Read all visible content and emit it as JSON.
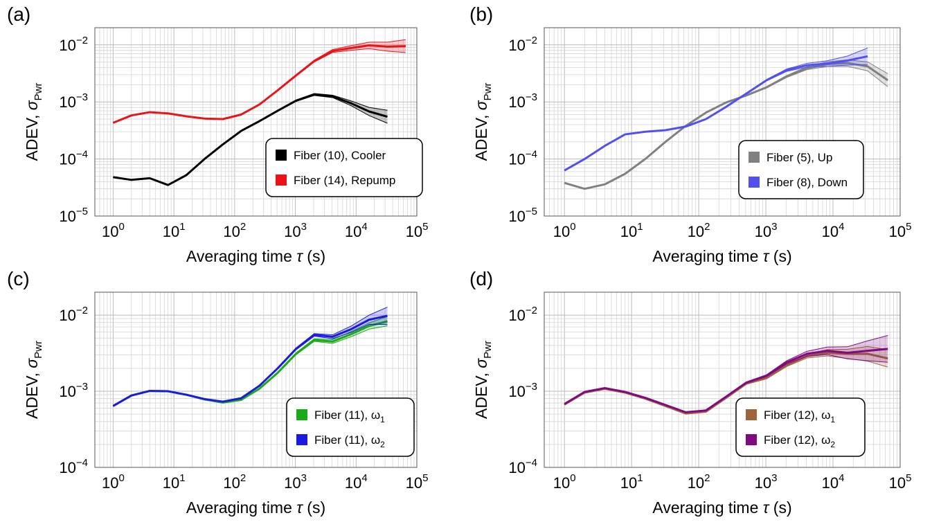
{
  "figure": {
    "xlabel_prefix": "Averaging time ",
    "xlabel_symbol": "τ",
    "xlabel_suffix": " (s)",
    "ylabel_prefix": "ADEV, ",
    "ylabel_symbol": "σ",
    "ylabel_sub": "Pwr"
  },
  "chart_data": [
    {
      "panel": "(a)",
      "type": "line",
      "xscale": "log",
      "yscale": "log",
      "xlim": [
        0.5,
        100000
      ],
      "ylim": [
        1e-05,
        0.02
      ],
      "grid": true,
      "legend_position": "lower-right",
      "x_ticks": [
        {
          "base": "10",
          "exp": "0"
        },
        {
          "base": "10",
          "exp": "1"
        },
        {
          "base": "10",
          "exp": "2"
        },
        {
          "base": "10",
          "exp": "3"
        },
        {
          "base": "10",
          "exp": "4"
        },
        {
          "base": "10",
          "exp": "5"
        }
      ],
      "y_ticks": [
        {
          "base": "10",
          "exp": "−5"
        },
        {
          "base": "10",
          "exp": "−4"
        },
        {
          "base": "10",
          "exp": "−3"
        },
        {
          "base": "10",
          "exp": "−2"
        }
      ],
      "series": [
        {
          "name": "Fiber (10), Cooler",
          "label": "Fiber (10), Cooler",
          "label_sub": "",
          "color": "#000000",
          "x": [
            1,
            2,
            4,
            8,
            16,
            32,
            64,
            128,
            256,
            512,
            1024,
            2048,
            4096,
            8192,
            16384,
            32768
          ],
          "y": [
            4.8e-05,
            4.3e-05,
            4.6e-05,
            3.5e-05,
            5.2e-05,
            0.0001,
            0.00018,
            0.00031,
            0.00046,
            0.0007,
            0.00105,
            0.00135,
            0.00125,
            0.00095,
            0.00068,
            0.00055
          ],
          "band_rel": [
            0.01,
            0.01,
            0.01,
            0.01,
            0.01,
            0.01,
            0.01,
            0.01,
            0.01,
            0.02,
            0.03,
            0.04,
            0.05,
            0.1,
            0.18,
            0.3
          ]
        },
        {
          "name": "Fiber (14), Repump",
          "label": "Fiber (14), Repump",
          "label_sub": "",
          "color": "#e8141a",
          "x": [
            1,
            2,
            4,
            8,
            16,
            32,
            64,
            128,
            256,
            512,
            1024,
            2048,
            4096,
            8192,
            16384,
            32768,
            65536
          ],
          "y": [
            0.00043,
            0.00058,
            0.00066,
            0.00063,
            0.00056,
            0.00051,
            0.0005,
            0.0006,
            0.0009,
            0.0016,
            0.0029,
            0.0052,
            0.0078,
            0.0088,
            0.0098,
            0.0093,
            0.0095
          ],
          "band_rel": [
            0.01,
            0.01,
            0.01,
            0.01,
            0.01,
            0.01,
            0.01,
            0.01,
            0.01,
            0.02,
            0.03,
            0.04,
            0.06,
            0.1,
            0.14,
            0.2,
            0.3
          ]
        }
      ]
    },
    {
      "panel": "(b)",
      "type": "line",
      "xscale": "log",
      "yscale": "log",
      "xlim": [
        0.5,
        100000
      ],
      "ylim": [
        1e-05,
        0.02
      ],
      "grid": true,
      "legend_position": "lower-right",
      "x_ticks": [
        {
          "base": "10",
          "exp": "0"
        },
        {
          "base": "10",
          "exp": "1"
        },
        {
          "base": "10",
          "exp": "2"
        },
        {
          "base": "10",
          "exp": "3"
        },
        {
          "base": "10",
          "exp": "4"
        },
        {
          "base": "10",
          "exp": "5"
        }
      ],
      "y_ticks": [
        {
          "base": "10",
          "exp": "−5"
        },
        {
          "base": "10",
          "exp": "−4"
        },
        {
          "base": "10",
          "exp": "−3"
        },
        {
          "base": "10",
          "exp": "−2"
        }
      ],
      "series": [
        {
          "name": "Fiber (5), Up",
          "label": "Fiber (5), Up",
          "label_sub": "",
          "color": "#808080",
          "x": [
            1,
            2,
            4,
            8,
            16,
            32,
            64,
            128,
            256,
            512,
            1024,
            2048,
            4096,
            8192,
            16384,
            32768,
            65536
          ],
          "y": [
            3.8e-05,
            3e-05,
            3.6e-05,
            5.5e-05,
            0.0001,
            0.0002,
            0.00038,
            0.00065,
            0.00098,
            0.0013,
            0.0018,
            0.0028,
            0.0039,
            0.0046,
            0.0048,
            0.0042,
            0.0024
          ],
          "band_rel": [
            0.01,
            0.01,
            0.01,
            0.01,
            0.01,
            0.01,
            0.01,
            0.01,
            0.01,
            0.02,
            0.03,
            0.04,
            0.06,
            0.1,
            0.14,
            0.2,
            0.3
          ]
        },
        {
          "name": "Fiber (8), Down",
          "label": "Fiber (8), Down",
          "label_sub": "",
          "color": "#5050f0",
          "x": [
            1,
            2,
            4,
            8,
            16,
            32,
            64,
            128,
            256,
            512,
            1024,
            2048,
            4096,
            8192,
            16384,
            32768
          ],
          "y": [
            6.3e-05,
            0.0001,
            0.00017,
            0.00027,
            0.0003,
            0.00032,
            0.00037,
            0.0005,
            0.00082,
            0.0014,
            0.0024,
            0.0036,
            0.0044,
            0.0047,
            0.0053,
            0.0063
          ],
          "band_rel": [
            0.01,
            0.01,
            0.01,
            0.01,
            0.01,
            0.01,
            0.01,
            0.01,
            0.01,
            0.02,
            0.03,
            0.05,
            0.08,
            0.12,
            0.2,
            0.4
          ]
        }
      ]
    },
    {
      "panel": "(c)",
      "type": "line",
      "xscale": "log",
      "yscale": "log",
      "xlim": [
        0.5,
        100000
      ],
      "ylim": [
        0.0001,
        0.02
      ],
      "grid": true,
      "legend_position": "lower-right",
      "x_ticks": [
        {
          "base": "10",
          "exp": "0"
        },
        {
          "base": "10",
          "exp": "1"
        },
        {
          "base": "10",
          "exp": "2"
        },
        {
          "base": "10",
          "exp": "3"
        },
        {
          "base": "10",
          "exp": "4"
        },
        {
          "base": "10",
          "exp": "5"
        }
      ],
      "y_ticks": [
        {
          "base": "10",
          "exp": "−4"
        },
        {
          "base": "10",
          "exp": "−3"
        },
        {
          "base": "10",
          "exp": "−2"
        }
      ],
      "series": [
        {
          "name": "Fiber (11), ω1",
          "label": "Fiber (11), ω",
          "label_sub": "1",
          "color": "#1aab1a",
          "x": [
            1,
            2,
            4,
            8,
            16,
            32,
            64,
            128,
            256,
            512,
            1024,
            2048,
            4096,
            8192,
            16384,
            32768
          ],
          "y": [
            0.00064,
            0.00088,
            0.00101,
            0.001,
            0.0009,
            0.00078,
            0.00071,
            0.00077,
            0.00108,
            0.00175,
            0.0031,
            0.0047,
            0.0045,
            0.0056,
            0.0072,
            0.0083
          ],
          "band_rel": [
            0.01,
            0.01,
            0.01,
            0.01,
            0.01,
            0.01,
            0.01,
            0.01,
            0.01,
            0.02,
            0.03,
            0.04,
            0.06,
            0.08,
            0.1,
            0.15
          ]
        },
        {
          "name": "Fiber (11), ω2",
          "label": "Fiber (11), ω",
          "label_sub": "2",
          "color": "#1a1ae0",
          "x": [
            1,
            2,
            4,
            8,
            16,
            32,
            64,
            128,
            256,
            512,
            1024,
            2048,
            4096,
            8192,
            16384,
            32768
          ],
          "y": [
            0.00064,
            0.00088,
            0.00101,
            0.001,
            0.0009,
            0.00079,
            0.00073,
            0.00081,
            0.00118,
            0.002,
            0.0036,
            0.0055,
            0.0052,
            0.0065,
            0.0087,
            0.0098
          ],
          "band_rel": [
            0.01,
            0.01,
            0.01,
            0.01,
            0.01,
            0.01,
            0.01,
            0.01,
            0.01,
            0.02,
            0.03,
            0.04,
            0.06,
            0.1,
            0.15,
            0.3
          ]
        }
      ]
    },
    {
      "panel": "(d)",
      "type": "line",
      "xscale": "log",
      "yscale": "log",
      "xlim": [
        0.5,
        100000
      ],
      "ylim": [
        0.0001,
        0.02
      ],
      "grid": true,
      "legend_position": "lower-right",
      "x_ticks": [
        {
          "base": "10",
          "exp": "0"
        },
        {
          "base": "10",
          "exp": "1"
        },
        {
          "base": "10",
          "exp": "2"
        },
        {
          "base": "10",
          "exp": "3"
        },
        {
          "base": "10",
          "exp": "4"
        },
        {
          "base": "10",
          "exp": "5"
        }
      ],
      "y_ticks": [
        {
          "base": "10",
          "exp": "−4"
        },
        {
          "base": "10",
          "exp": "−3"
        },
        {
          "base": "10",
          "exp": "−2"
        }
      ],
      "series": [
        {
          "name": "Fiber (12), ω1",
          "label": "Fiber (12), ω",
          "label_sub": "1",
          "color": "#a0643c",
          "x": [
            1,
            2,
            4,
            8,
            16,
            32,
            64,
            128,
            256,
            512,
            1024,
            2048,
            4096,
            8192,
            16384,
            32768,
            65536
          ],
          "y": [
            0.00067,
            0.00096,
            0.00108,
            0.00096,
            0.0008,
            0.00064,
            0.00051,
            0.00054,
            0.00082,
            0.00126,
            0.0015,
            0.0022,
            0.0029,
            0.0032,
            0.0031,
            0.0031,
            0.0027
          ],
          "band_rel": [
            0.01,
            0.01,
            0.01,
            0.01,
            0.01,
            0.01,
            0.01,
            0.01,
            0.01,
            0.02,
            0.03,
            0.04,
            0.06,
            0.1,
            0.15,
            0.25,
            0.3
          ]
        },
        {
          "name": "Fiber (12), ω2",
          "label": "Fiber (12), ω",
          "label_sub": "2",
          "color": "#800a80",
          "x": [
            1,
            2,
            4,
            8,
            16,
            32,
            64,
            128,
            256,
            512,
            1024,
            2048,
            4096,
            8192,
            16384,
            32768,
            65536
          ],
          "y": [
            0.00068,
            0.00098,
            0.0011,
            0.00098,
            0.00082,
            0.00066,
            0.00053,
            0.00056,
            0.00085,
            0.0013,
            0.0016,
            0.0024,
            0.0031,
            0.0034,
            0.0032,
            0.0034,
            0.0036
          ],
          "band_rel": [
            0.01,
            0.01,
            0.01,
            0.01,
            0.01,
            0.01,
            0.01,
            0.01,
            0.01,
            0.02,
            0.03,
            0.05,
            0.08,
            0.12,
            0.2,
            0.35,
            0.5
          ]
        }
      ]
    }
  ]
}
